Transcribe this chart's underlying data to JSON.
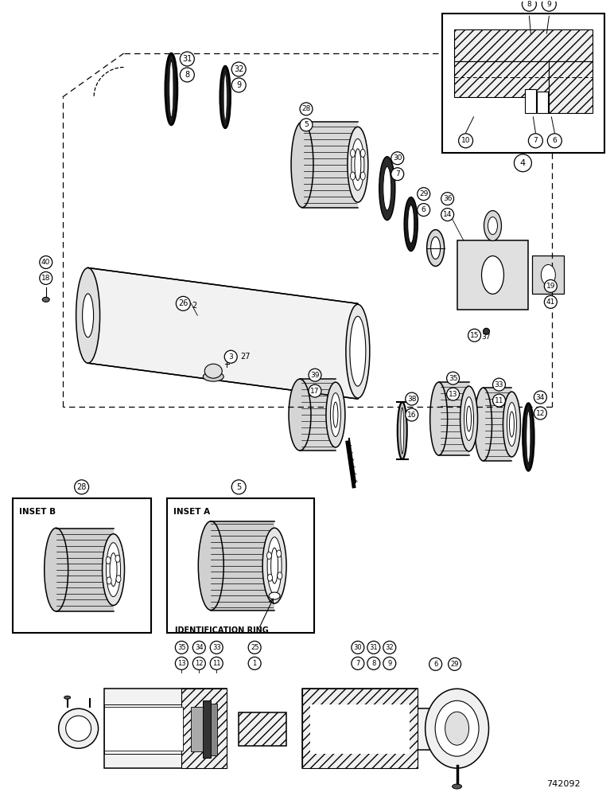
{
  "title": "742092",
  "bg_color": "#ffffff",
  "line_color": "#000000",
  "fig_width": 7.72,
  "fig_height": 10.0,
  "inset_a_label": "INSET A",
  "inset_b_label": "INSET B",
  "id_ring_label": "IDENTIFICATION RING",
  "lw_main": 1.1,
  "lw_thin": 0.6,
  "lw_thick": 1.8
}
